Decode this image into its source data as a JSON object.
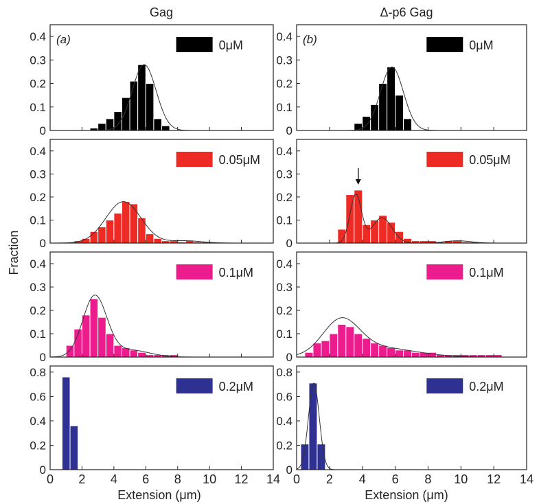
{
  "figure": {
    "column_titles": [
      "Gag",
      "Δ-p6 Gag"
    ],
    "ylabel": "Fraction",
    "xlabel": "Extension (μm)"
  },
  "chart_data": [
    {
      "type": "bar",
      "panel": "(a)",
      "column": 0,
      "row": 0,
      "legend": {
        "label": "0μM",
        "color": "#000000"
      },
      "bar_color": "#000000",
      "bin_width": 0.5,
      "x": [
        2.75,
        3.25,
        3.75,
        4.25,
        4.75,
        5.25,
        5.75,
        6.25,
        6.75,
        7.25
      ],
      "values": [
        0.01,
        0.03,
        0.05,
        0.08,
        0.14,
        0.21,
        0.28,
        0.2,
        0.05,
        0.02
      ],
      "fit": {
        "type": "gaussian",
        "components": [
          {
            "a": 0.28,
            "mu": 5.9,
            "sigma": 0.75
          }
        ]
      },
      "xlim": [
        0,
        14
      ],
      "ylim": [
        0,
        0.45
      ],
      "yticks": [
        "0",
        "0.1",
        "0.2",
        "0.3",
        "0.4"
      ],
      "grid": false
    },
    {
      "type": "bar",
      "panel": "(b)",
      "column": 1,
      "row": 0,
      "legend": {
        "label": "0μM",
        "color": "#000000"
      },
      "bar_color": "#000000",
      "bin_width": 0.5,
      "x": [
        3.75,
        4.25,
        4.75,
        5.25,
        5.75,
        6.25,
        6.75
      ],
      "values": [
        0.03,
        0.06,
        0.11,
        0.2,
        0.27,
        0.15,
        0.05
      ],
      "fit": {
        "type": "gaussian",
        "components": [
          {
            "a": 0.27,
            "mu": 5.8,
            "sigma": 0.7
          }
        ]
      },
      "xlim": [
        0,
        14
      ],
      "ylim": [
        0,
        0.45
      ],
      "yticks": [
        "0",
        "0.1",
        "0.2",
        "0.3",
        "0.4"
      ],
      "grid": false
    },
    {
      "type": "bar",
      "column": 0,
      "row": 1,
      "legend": {
        "label": "0.05μM",
        "color": "#ee2a24"
      },
      "bar_color": "#ee2a24",
      "bin_width": 0.5,
      "x": [
        1.75,
        2.25,
        2.75,
        3.25,
        3.75,
        4.25,
        4.75,
        5.25,
        5.75,
        6.25,
        6.75,
        7.25,
        7.75,
        8.25,
        8.75,
        9.25,
        9.75
      ],
      "values": [
        0.01,
        0.02,
        0.05,
        0.07,
        0.1,
        0.13,
        0.18,
        0.17,
        0.11,
        0.04,
        0.02,
        0.01,
        0.01,
        0.005,
        0.01,
        0.005,
        0.005
      ],
      "fit": {
        "type": "gaussian",
        "components": [
          {
            "a": 0.18,
            "mu": 4.6,
            "sigma": 1.1
          },
          {
            "a": 0.01,
            "mu": 8.5,
            "sigma": 1.0
          }
        ]
      },
      "xlim": [
        0,
        14
      ],
      "ylim": [
        0,
        0.45
      ],
      "yticks": [
        "0",
        "0.1",
        "0.2",
        "0.3",
        "0.4"
      ],
      "grid": false
    },
    {
      "type": "bar",
      "column": 1,
      "row": 1,
      "legend": {
        "label": "0.05μM",
        "color": "#ee2a24"
      },
      "bar_color": "#ee2a24",
      "bin_width": 0.5,
      "x": [
        2.75,
        3.25,
        3.75,
        4.25,
        4.75,
        5.25,
        5.75,
        6.25,
        6.75,
        7.25,
        7.75,
        8.25,
        8.75,
        9.25,
        9.75,
        10.25,
        10.75
      ],
      "values": [
        0.06,
        0.21,
        0.23,
        0.08,
        0.1,
        0.12,
        0.09,
        0.05,
        0.02,
        0.01,
        0.01,
        0.01,
        0.005,
        0.01,
        0.01,
        0.005,
        0.005
      ],
      "fit": {
        "type": "gaussian",
        "components": [
          {
            "a": 0.21,
            "mu": 3.6,
            "sigma": 0.35
          },
          {
            "a": 0.11,
            "mu": 5.2,
            "sigma": 0.6
          },
          {
            "a": 0.01,
            "mu": 9.8,
            "sigma": 0.8
          }
        ]
      },
      "annotation": {
        "type": "arrow",
        "x": 3.75
      },
      "xlim": [
        0,
        14
      ],
      "ylim": [
        0,
        0.45
      ],
      "yticks": [
        "0",
        "0.1",
        "0.2",
        "0.3",
        "0.4"
      ],
      "grid": false
    },
    {
      "type": "bar",
      "column": 0,
      "row": 2,
      "legend": {
        "label": "0.1μM",
        "color": "#ec1c8c"
      },
      "bar_color": "#ec1c8c",
      "bin_width": 0.5,
      "x": [
        1.25,
        1.75,
        2.25,
        2.75,
        3.25,
        3.75,
        4.25,
        4.75,
        5.25,
        5.75,
        6.25,
        6.75,
        7.25,
        7.75
      ],
      "values": [
        0.05,
        0.12,
        0.18,
        0.25,
        0.17,
        0.1,
        0.05,
        0.04,
        0.03,
        0.02,
        0.01,
        0.01,
        0.01,
        0.01
      ],
      "fit": {
        "type": "gaussian",
        "components": [
          {
            "a": 0.26,
            "mu": 2.8,
            "sigma": 0.75
          },
          {
            "a": 0.03,
            "mu": 5.0,
            "sigma": 1.2
          }
        ]
      },
      "xlim": [
        0,
        14
      ],
      "ylim": [
        0,
        0.45
      ],
      "yticks": [
        "0",
        "0.1",
        "0.2",
        "0.3",
        "0.4"
      ],
      "grid": false
    },
    {
      "type": "bar",
      "column": 1,
      "row": 2,
      "legend": {
        "label": "0.1μM",
        "color": "#ec1c8c"
      },
      "bar_color": "#ec1c8c",
      "bin_width": 0.5,
      "x": [
        0.75,
        1.25,
        1.75,
        2.25,
        2.75,
        3.25,
        3.75,
        4.25,
        4.75,
        5.25,
        5.75,
        6.25,
        6.75,
        7.25,
        7.75,
        8.25,
        8.75,
        9.25,
        9.75,
        10.25,
        10.75,
        11.25,
        11.75,
        12.25
      ],
      "values": [
        0.02,
        0.06,
        0.07,
        0.1,
        0.14,
        0.13,
        0.1,
        0.08,
        0.06,
        0.05,
        0.04,
        0.03,
        0.03,
        0.02,
        0.02,
        0.02,
        0.01,
        0.01,
        0.01,
        0.01,
        0.01,
        0.01,
        0.01,
        0.01
      ],
      "fit": {
        "type": "gaussian",
        "components": [
          {
            "a": 0.145,
            "mu": 2.7,
            "sigma": 1.1
          },
          {
            "a": 0.04,
            "mu": 5.0,
            "sigma": 2.2
          }
        ]
      },
      "xlim": [
        0,
        14
      ],
      "ylim": [
        0,
        0.45
      ],
      "yticks": [
        "0",
        "0.1",
        "0.2",
        "0.3",
        "0.4"
      ],
      "grid": false
    },
    {
      "type": "bar",
      "column": 0,
      "row": 3,
      "legend": {
        "label": "0.2μM",
        "color": "#2e3192"
      },
      "bar_color": "#2e3192",
      "bin_width": 0.5,
      "x": [
        1.0,
        1.5
      ],
      "values": [
        0.76,
        0.36
      ],
      "fit": null,
      "xlim": [
        0,
        14
      ],
      "ylim": [
        0,
        0.85
      ],
      "yticks": [
        "0",
        "0.2",
        "0.4",
        "0.6",
        "0.8"
      ],
      "grid": false
    },
    {
      "type": "bar",
      "column": 1,
      "row": 3,
      "legend": {
        "label": "0.2μM",
        "color": "#2e3192"
      },
      "bar_color": "#2e3192",
      "bin_width": 0.5,
      "x": [
        0.5,
        1.0,
        1.5
      ],
      "values": [
        0.21,
        0.71,
        0.21
      ],
      "fit": {
        "type": "gaussian",
        "components": [
          {
            "a": 0.71,
            "mu": 1.05,
            "sigma": 0.33
          }
        ]
      },
      "xlim": [
        0,
        14
      ],
      "ylim": [
        0,
        0.85
      ],
      "yticks": [
        "0",
        "0.2",
        "0.4",
        "0.6",
        "0.8"
      ],
      "grid": false
    }
  ],
  "x_ticks": [
    "0",
    "2",
    "4",
    "6",
    "8",
    "10",
    "12",
    "14"
  ]
}
